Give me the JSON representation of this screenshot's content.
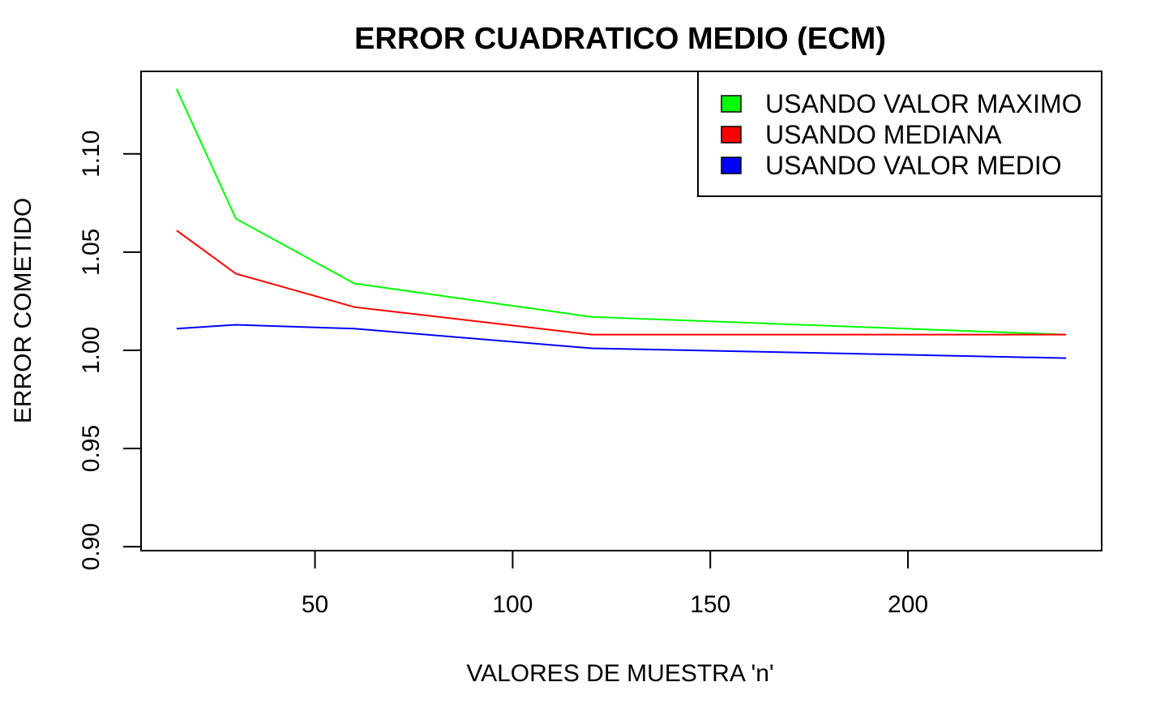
{
  "chart_data": {
    "type": "line",
    "title": "ERROR CUADRATICO MEDIO (ECM)",
    "xlabel": "VALORES DE MUESTRA 'n'",
    "ylabel": "ERROR COMETIDO",
    "x": [
      15,
      30,
      60,
      120,
      240
    ],
    "xlim": [
      6,
      249
    ],
    "ylim": [
      0.898,
      1.142
    ],
    "xticks": [
      50,
      100,
      150,
      200
    ],
    "xtick_labels": [
      "50",
      "100",
      "150",
      "200"
    ],
    "yticks": [
      0.9,
      0.95,
      1.0,
      1.05,
      1.1
    ],
    "ytick_labels": [
      "0.90",
      "0.95",
      "1.00",
      "1.05",
      "1.10"
    ],
    "grid": false,
    "legend_position": "top-right",
    "series": [
      {
        "name": "USANDO VALOR MAXIMO",
        "color": "#00ff00",
        "values": [
          1.133,
          1.067,
          1.034,
          1.017,
          1.008
        ]
      },
      {
        "name": "USANDO MEDIANA",
        "color": "#ff0000",
        "values": [
          1.061,
          1.039,
          1.022,
          1.008,
          1.008
        ]
      },
      {
        "name": "USANDO VALOR MEDIO",
        "color": "#0000ff",
        "values": [
          1.011,
          1.013,
          1.011,
          1.001,
          0.996
        ]
      }
    ]
  }
}
